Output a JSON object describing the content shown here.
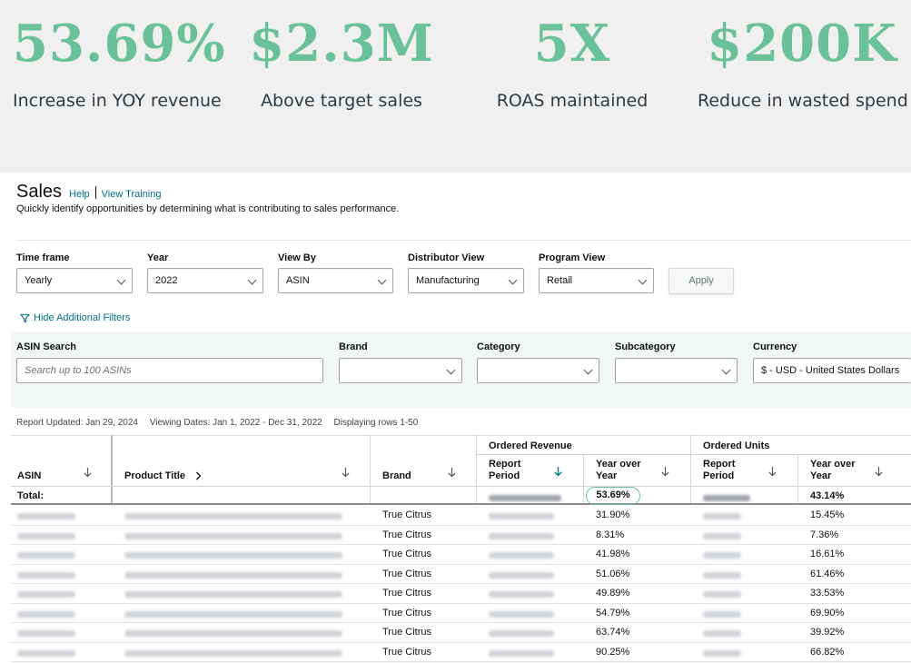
{
  "stats": [
    {
      "value": "53.69%",
      "label": "Increase in YOY revenue"
    },
    {
      "value": "$2.3M",
      "label": "Above target sales"
    },
    {
      "value": "5X",
      "label": "ROAS maintained"
    },
    {
      "value": "$200K",
      "label": "Reduce in wasted spend"
    }
  ],
  "header": {
    "title": "Sales",
    "help": "Help",
    "training": "View Training",
    "subtitle": "Quickly identify opportunities by determining what is contributing to sales performance."
  },
  "filters": {
    "time_frame": {
      "label": "Time frame",
      "value": "Yearly"
    },
    "year": {
      "label": "Year",
      "value": "2022"
    },
    "view_by": {
      "label": "View By",
      "value": "ASIN"
    },
    "distributor_view": {
      "label": "Distributor View",
      "value": "Manufacturing"
    },
    "program_view": {
      "label": "Program View",
      "value": "Retail"
    },
    "apply": "Apply",
    "hide_additional": "Hide Additional Filters"
  },
  "advanced_filters": {
    "asin_search": {
      "label": "ASIN Search",
      "placeholder": "Search up to 100 ASINs"
    },
    "brand": {
      "label": "Brand",
      "value": ""
    },
    "category": {
      "label": "Category",
      "value": ""
    },
    "subcategory": {
      "label": "Subcategory",
      "value": ""
    },
    "currency": {
      "label": "Currency",
      "value": "$ - USD - United States Dollars"
    }
  },
  "report_meta": {
    "updated": "Report Updated: Jan 29, 2024",
    "viewing": "Viewing Dates: Jan 1, 2022 - Dec 31, 2022",
    "rows": "Displaying rows 1-50"
  },
  "table": {
    "group_headers": {
      "ordered_revenue": "Ordered Revenue",
      "ordered_units": "Ordered Units"
    },
    "columns": {
      "asin": "ASIN",
      "product_title": "Product Title",
      "brand": "Brand",
      "rev_report_period": "Report Period",
      "rev_yoy": "Year over Year",
      "units_report_period": "Report Period",
      "units_yoy": "Year over Year"
    },
    "total": {
      "label": "Total:",
      "rev_yoy": "53.69%",
      "units_yoy": "43.14%"
    },
    "rows": [
      {
        "brand": "True Citrus",
        "rev_yoy": "31.90%",
        "units_yoy": "15.45%"
      },
      {
        "brand": "True Citrus",
        "rev_yoy": "8.31%",
        "units_yoy": "7.36%"
      },
      {
        "brand": "True Citrus",
        "rev_yoy": "41.98%",
        "units_yoy": "16.61%"
      },
      {
        "brand": "True Citrus",
        "rev_yoy": "51.06%",
        "units_yoy": "61.46%"
      },
      {
        "brand": "True Citrus",
        "rev_yoy": "49.89%",
        "units_yoy": "33.53%"
      },
      {
        "brand": "True Citrus",
        "rev_yoy": "54.79%",
        "units_yoy": "69.90%"
      },
      {
        "brand": "True Citrus",
        "rev_yoy": "63.74%",
        "units_yoy": "39.92%"
      },
      {
        "brand": "True Citrus",
        "rev_yoy": "90.25%",
        "units_yoy": "66.82%"
      }
    ]
  },
  "colors": {
    "accent": "#6bc19a",
    "link": "#007185",
    "panel": "#f1f6f7"
  }
}
